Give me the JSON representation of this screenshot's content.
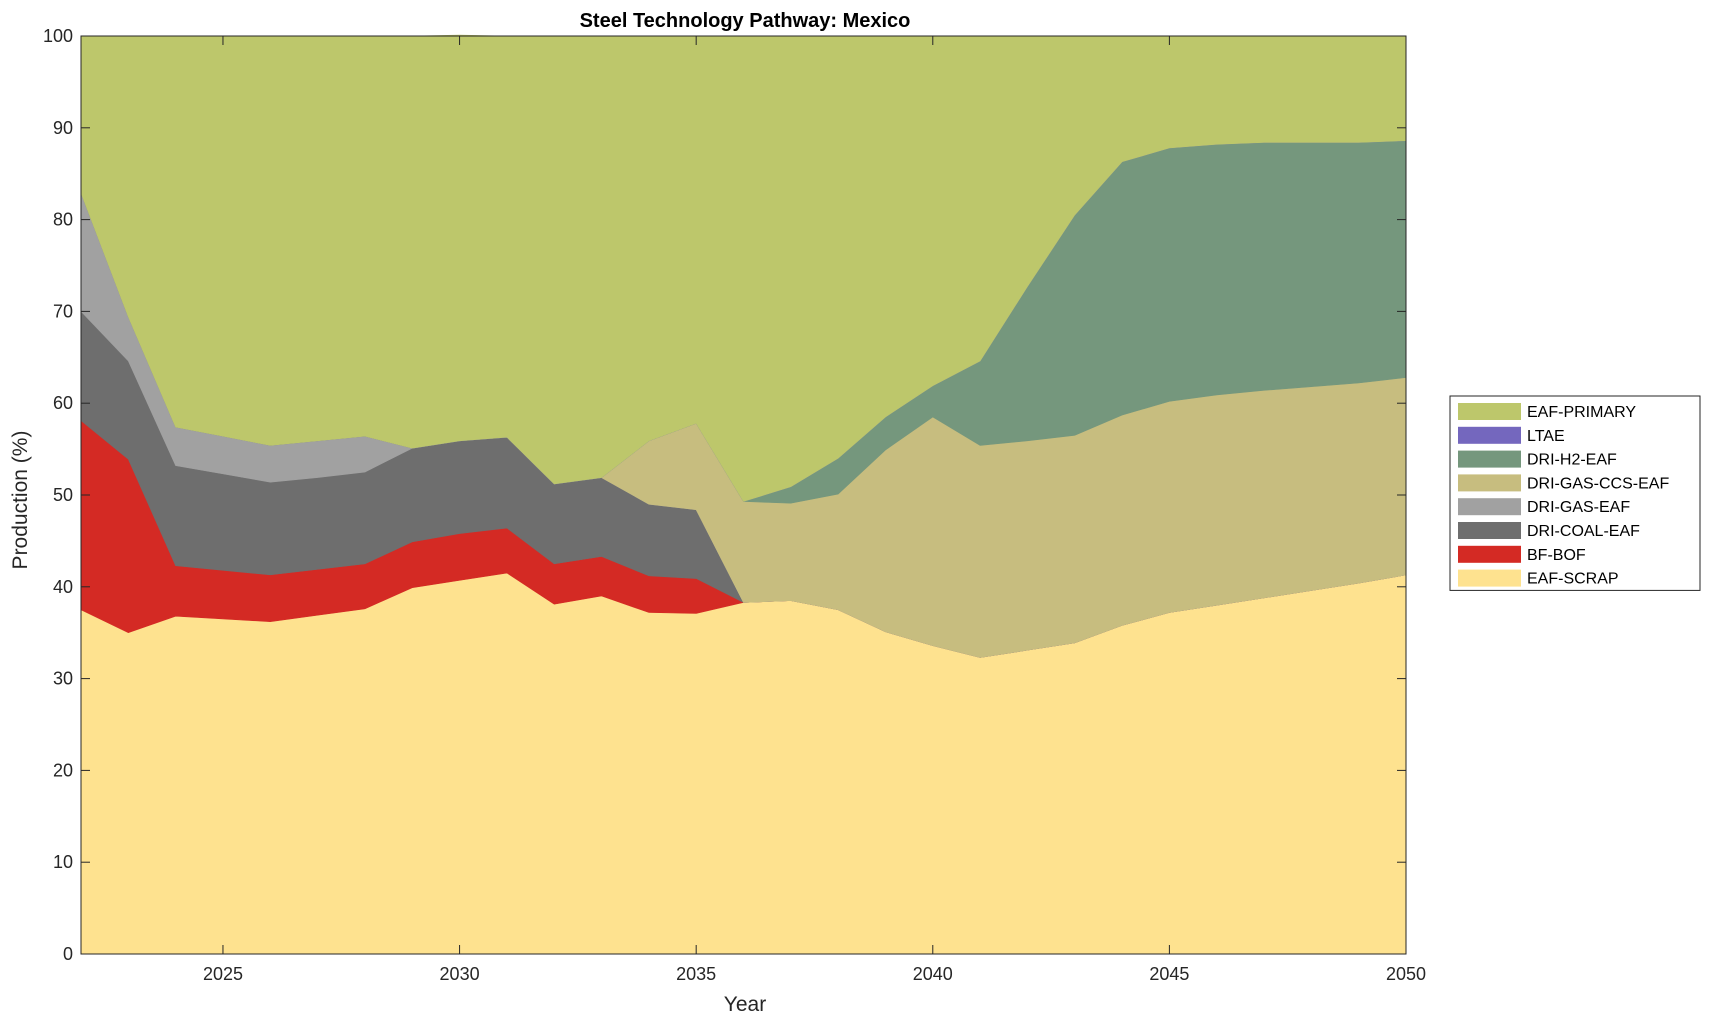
{
  "chart_data": {
    "type": "area",
    "stacked": true,
    "title": "Steel Technology Pathway: Mexico",
    "xlabel": "Year",
    "ylabel": "Production (%)",
    "xlim": [
      2022,
      2050
    ],
    "ylim": [
      0,
      100
    ],
    "xticks": [
      2025,
      2030,
      2035,
      2040,
      2045,
      2050
    ],
    "yticks": [
      0,
      10,
      20,
      30,
      40,
      50,
      60,
      70,
      80,
      90,
      100
    ],
    "legend_position": "right",
    "x": [
      2022,
      2023,
      2024,
      2025,
      2026,
      2027,
      2028,
      2029,
      2030,
      2031,
      2032,
      2033,
      2034,
      2035,
      2036,
      2037,
      2038,
      2039,
      2040,
      2041,
      2042,
      2043,
      2044,
      2045,
      2046,
      2047,
      2048,
      2049,
      2050
    ],
    "series": [
      {
        "name": "EAF-SCRAP",
        "color": "#FEE28F",
        "values": [
          37.5,
          35.0,
          36.8,
          36.5,
          36.2,
          36.9,
          37.6,
          39.9,
          40.7,
          41.5,
          38.1,
          39.0,
          37.2,
          37.1,
          38.3,
          38.5,
          37.5,
          35.1,
          33.6,
          32.3,
          33.1,
          33.9,
          35.8,
          37.2,
          38.0,
          38.8,
          39.6,
          40.4,
          41.3
        ]
      },
      {
        "name": "BF-BOF",
        "color": "#D42A24",
        "values": [
          20.6,
          18.9,
          5.5,
          5.3,
          5.1,
          5.0,
          4.9,
          5.0,
          5.1,
          4.9,
          4.4,
          4.3,
          4.0,
          3.8,
          0,
          0,
          0,
          0,
          0,
          0,
          0,
          0,
          0,
          0,
          0,
          0,
          0,
          0,
          0
        ]
      },
      {
        "name": "DRI-COAL-EAF",
        "color": "#6E6E6E",
        "values": [
          11.9,
          10.7,
          10.9,
          10.5,
          10.1,
          10.0,
          10.0,
          10.2,
          10.1,
          9.9,
          8.7,
          8.6,
          7.8,
          7.5,
          0,
          0,
          0,
          0,
          0,
          0,
          0,
          0,
          0,
          0,
          0,
          0,
          0,
          0,
          0
        ]
      },
      {
        "name": "DRI-GAS-EAF",
        "color": "#A1A1A1",
        "values": [
          12.9,
          4.8,
          4.2,
          4.1,
          4.0,
          4.0,
          3.9,
          0,
          0,
          0,
          0,
          0,
          0,
          0,
          0,
          0,
          0,
          0,
          0,
          0,
          0,
          0,
          0,
          0,
          0,
          0,
          0,
          0,
          0
        ]
      },
      {
        "name": "DRI-GAS-CCS-EAF",
        "color": "#C7BD7F",
        "values": [
          0,
          0,
          0,
          0,
          0,
          0,
          0,
          0,
          0,
          0,
          0,
          0,
          6.9,
          9.4,
          11.0,
          10.6,
          12.6,
          19.8,
          24.9,
          23.1,
          22.8,
          22.6,
          22.9,
          23.0,
          22.9,
          22.6,
          22.2,
          21.8,
          21.5
        ]
      },
      {
        "name": "DRI-H2-EAF",
        "color": "#75977D",
        "values": [
          0,
          0,
          0,
          0,
          0,
          0,
          0,
          0,
          0,
          0,
          0,
          0,
          0,
          0,
          0,
          1.8,
          3.9,
          3.6,
          3.4,
          9.2,
          16.8,
          24.0,
          27.6,
          27.6,
          27.3,
          27.0,
          26.6,
          26.2,
          25.8
        ]
      },
      {
        "name": "LTAE",
        "color": "#7467BE",
        "values": [
          0,
          0,
          0,
          0,
          0,
          0,
          0,
          0,
          0,
          0,
          0,
          0,
          0,
          0,
          0,
          0,
          0,
          0,
          0,
          0,
          0,
          0,
          0,
          0,
          0,
          0,
          0,
          0,
          0
        ]
      },
      {
        "name": "EAF-PRIMARY",
        "color": "#BDC76B",
        "values": [
          17.1,
          30.6,
          42.6,
          43.6,
          44.6,
          44.1,
          43.6,
          44.9,
          44.2,
          43.7,
          48.8,
          48.1,
          44.1,
          42.2,
          50.7,
          49.1,
          46.0,
          41.5,
          38.1,
          35.4,
          27.3,
          19.5,
          13.7,
          12.2,
          11.8,
          11.6,
          11.6,
          11.6,
          11.4
        ]
      }
    ],
    "legend_order": [
      "EAF-PRIMARY",
      "LTAE",
      "DRI-H2-EAF",
      "DRI-GAS-CCS-EAF",
      "DRI-GAS-EAF",
      "DRI-COAL-EAF",
      "BF-BOF",
      "EAF-SCRAP"
    ]
  }
}
